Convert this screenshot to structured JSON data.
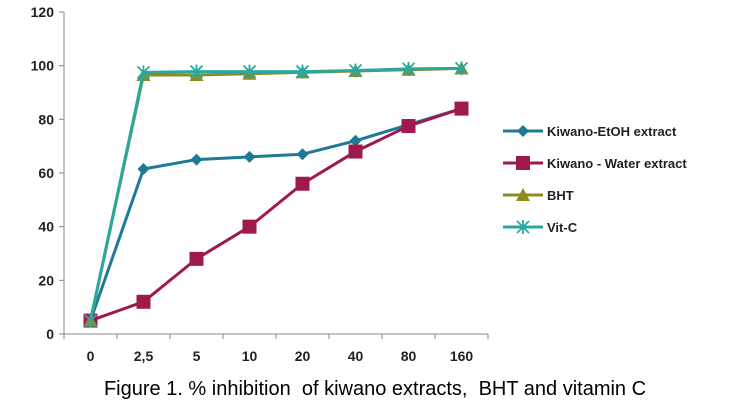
{
  "caption": "Figure 1. % inhibition  of kiwano extracts,  BHT and vitamin C",
  "chart_data": {
    "type": "line",
    "categories": [
      "0",
      "2,5",
      "5",
      "10",
      "20",
      "40",
      "80",
      "160"
    ],
    "ylim": [
      0,
      120
    ],
    "yticks": [
      0,
      20,
      40,
      60,
      80,
      100,
      120
    ],
    "xlabel": "",
    "ylabel": "",
    "grid": false,
    "legend_position": "right",
    "series": [
      {
        "name": "Kiwano-EtOH extract",
        "color": "#1f7a96",
        "marker": "diamond",
        "values": [
          5,
          61.5,
          65,
          66,
          67,
          72,
          78,
          84
        ]
      },
      {
        "name": "Kiwano - Water extract",
        "color": "#a0194d",
        "marker": "square",
        "values": [
          5,
          12,
          28,
          40,
          56,
          68,
          77.5,
          84
        ]
      },
      {
        "name": "BHT",
        "color": "#8c8c1f",
        "marker": "triangle",
        "values": [
          5,
          96.5,
          96.5,
          97,
          97.5,
          98,
          98.5,
          99
        ]
      },
      {
        "name": "Vit-C",
        "color": "#2aa8a0",
        "marker": "star",
        "values": [
          5,
          97.5,
          97.8,
          97.8,
          97.8,
          98.2,
          98.8,
          99
        ]
      }
    ]
  }
}
